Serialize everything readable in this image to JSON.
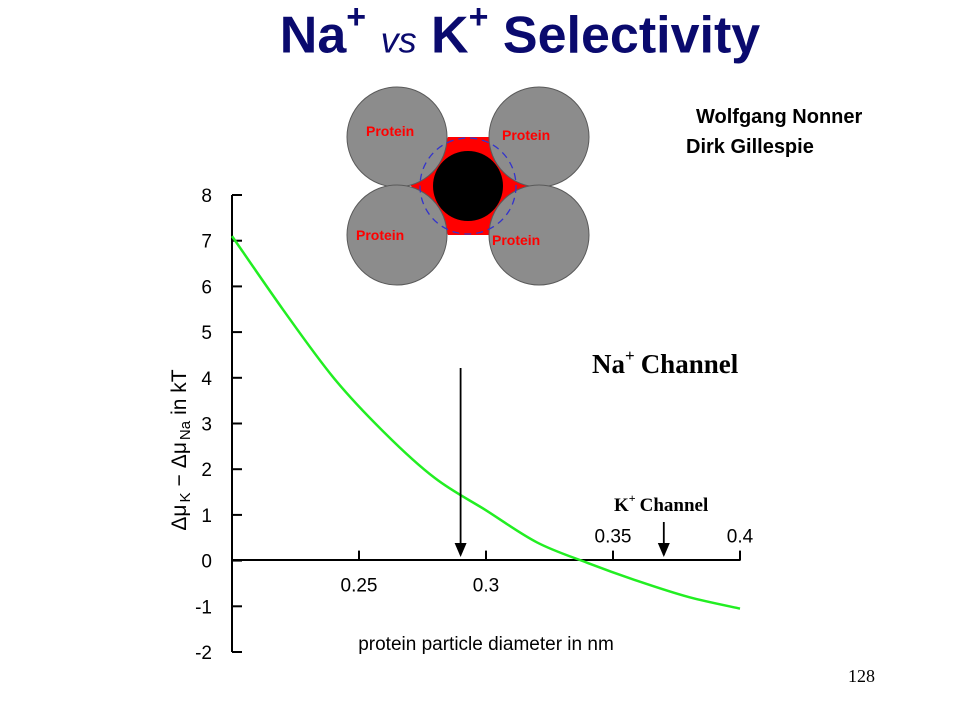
{
  "slide": {
    "title": {
      "part1": "Na",
      "sup1": "+",
      "vs": "vs",
      "part2": "K",
      "sup2": "+",
      "part3": "Selectivity"
    },
    "authors": [
      "Wolfgang Nonner",
      "Dirk Gillespie"
    ],
    "page_number": "128"
  },
  "diagram": {
    "protein_labels": [
      "Protein",
      "Protein",
      "Protein",
      "Protein"
    ],
    "colors": {
      "protein": "#8c8c8c",
      "filling": "#ff0000",
      "ion": "#000000",
      "dashed_circle": "#3333cc",
      "label": "#ff0000"
    }
  },
  "annotations": {
    "na_channel": {
      "text": "Na",
      "sup": "+",
      "suffix": "Channel",
      "x": 0.29
    },
    "k_channel": {
      "text": "K",
      "sup": "+",
      "suffix": "Channel",
      "x": 0.37
    }
  },
  "chart_data": {
    "type": "line",
    "ylabel_parts": {
      "delta1": "Δμ",
      "sub1": "K",
      "minus": "−",
      "delta2": "Δμ",
      "sub2": "Na",
      "suffix": "in kT"
    },
    "xlabel": "protein particle diameter in nm",
    "xlim": [
      0.2,
      0.4
    ],
    "ylim": [
      -2,
      8
    ],
    "yticks": [
      -2,
      -1,
      0,
      1,
      2,
      3,
      4,
      5,
      6,
      7,
      8
    ],
    "xticks_bottom": [
      "0.25",
      "0.3"
    ],
    "xticks_top": [
      "0.35",
      "0.4"
    ],
    "line_color": "#22ee22",
    "series": [
      {
        "x": [
          0.2,
          0.22,
          0.24,
          0.26,
          0.28,
          0.3,
          0.32,
          0.34,
          0.36,
          0.38,
          0.4
        ],
        "y": [
          7.1,
          5.5,
          4.0,
          2.8,
          1.8,
          1.1,
          0.4,
          -0.05,
          -0.45,
          -0.8,
          -1.05
        ]
      }
    ]
  }
}
